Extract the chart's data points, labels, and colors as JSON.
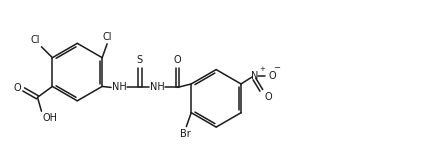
{
  "bg_color": "#ffffff",
  "line_color": "#1a1a1a",
  "line_width": 1.1,
  "font_size": 7.0,
  "figsize": [
    4.42,
    1.58
  ],
  "dpi": 100,
  "xlim": [
    0,
    8.84
  ],
  "ylim": [
    0,
    3.16
  ]
}
